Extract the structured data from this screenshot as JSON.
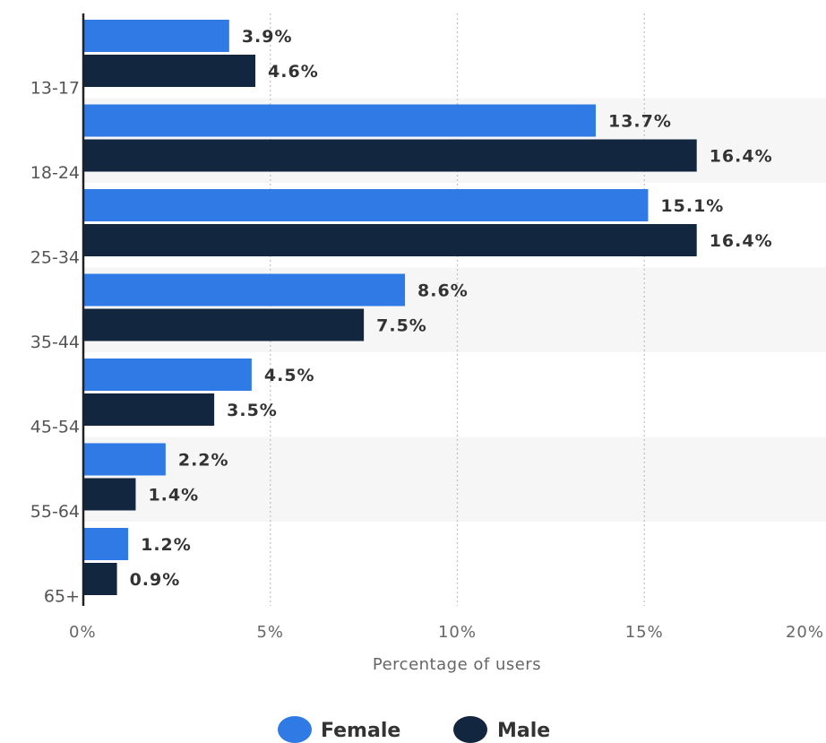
{
  "chart_data": {
    "type": "bar",
    "orientation": "horizontal",
    "categories": [
      "13-17",
      "18-24",
      "25-34",
      "35-44",
      "45-54",
      "55-64",
      "65+"
    ],
    "series": [
      {
        "name": "Female",
        "color": "#2f7ae5",
        "values": [
          3.9,
          13.7,
          15.1,
          8.6,
          4.5,
          2.2,
          1.2
        ],
        "labels": [
          "3.9%",
          "13.7%",
          "15.1%",
          "8.6%",
          "4.5%",
          "2.2%",
          "1.2%"
        ]
      },
      {
        "name": "Male",
        "color": "#13263f",
        "values": [
          4.6,
          16.4,
          16.4,
          7.5,
          3.5,
          1.4,
          0.9
        ],
        "labels": [
          "4.6%",
          "16.4%",
          "16.4%",
          "7.5%",
          "3.5%",
          "1.4%",
          "0.9%"
        ]
      }
    ],
    "xlabel": "Percentage of users",
    "ylabel": "",
    "xlim": [
      0,
      20
    ],
    "xticks": [
      0,
      5,
      10,
      15,
      20
    ],
    "xtick_labels": [
      "0%",
      "5%",
      "10%",
      "15%",
      "20%"
    ],
    "grid": "vertical dotted",
    "legend": "bottom-center"
  }
}
